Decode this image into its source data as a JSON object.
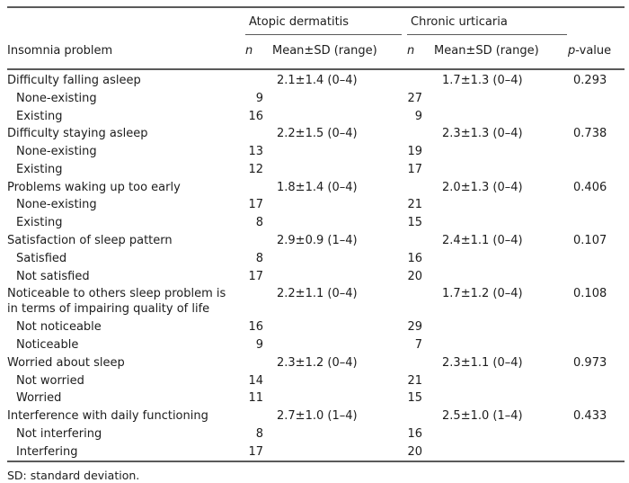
{
  "colors": {
    "rule": "#5a5a5a",
    "text": "#1c1c1c",
    "background": "#ffffff"
  },
  "table": {
    "groups": [
      "Atopic dermatitis",
      "Chronic urticaria"
    ],
    "headers": {
      "stub": "Insomnia problem",
      "n": "n",
      "mean": "Mean±SD (range)",
      "p_symbol": "p",
      "p_suffix": "-value"
    },
    "rows": [
      {
        "label": "Difficulty falling asleep",
        "indent": false,
        "ad_n": "",
        "ad_mean": "2.1±1.4 (0–4)",
        "cu_n": "",
        "cu_mean": "1.7±1.3 (0–4)",
        "p": "0.293"
      },
      {
        "label": "None-existing",
        "indent": true,
        "ad_n": "9",
        "ad_mean": "",
        "cu_n": "27",
        "cu_mean": "",
        "p": ""
      },
      {
        "label": "Existing",
        "indent": true,
        "ad_n": "16",
        "ad_mean": "",
        "cu_n": "9",
        "cu_mean": "",
        "p": ""
      },
      {
        "label": "Difficulty staying asleep",
        "indent": false,
        "ad_n": "",
        "ad_mean": "2.2±1.5 (0–4)",
        "cu_n": "",
        "cu_mean": "2.3±1.3 (0–4)",
        "p": "0.738"
      },
      {
        "label": "None-existing",
        "indent": true,
        "ad_n": "13",
        "ad_mean": "",
        "cu_n": "19",
        "cu_mean": "",
        "p": ""
      },
      {
        "label": "Existing",
        "indent": true,
        "ad_n": "12",
        "ad_mean": "",
        "cu_n": "17",
        "cu_mean": "",
        "p": ""
      },
      {
        "label": "Problems waking up too early",
        "indent": false,
        "ad_n": "",
        "ad_mean": "1.8±1.4 (0–4)",
        "cu_n": "",
        "cu_mean": "2.0±1.3 (0–4)",
        "p": "0.406"
      },
      {
        "label": "None-existing",
        "indent": true,
        "ad_n": "17",
        "ad_mean": "",
        "cu_n": "21",
        "cu_mean": "",
        "p": ""
      },
      {
        "label": "Existing",
        "indent": true,
        "ad_n": "8",
        "ad_mean": "",
        "cu_n": "15",
        "cu_mean": "",
        "p": ""
      },
      {
        "label": "Satisfaction of sleep pattern",
        "indent": false,
        "ad_n": "",
        "ad_mean": "2.9±0.9 (1–4)",
        "cu_n": "",
        "cu_mean": "2.4±1.1 (0–4)",
        "p": "0.107"
      },
      {
        "label": "Satisfied",
        "indent": true,
        "ad_n": "8",
        "ad_mean": "",
        "cu_n": "16",
        "cu_mean": "",
        "p": ""
      },
      {
        "label": "Not satisfied",
        "indent": true,
        "ad_n": "17",
        "ad_mean": "",
        "cu_n": "20",
        "cu_mean": "",
        "p": ""
      },
      {
        "label": "Noticeable to others sleep problem is\nin terms of impairing quality of life",
        "indent": false,
        "ad_n": "",
        "ad_mean": "2.2±1.1 (0–4)",
        "cu_n": "",
        "cu_mean": "1.7±1.2 (0–4)",
        "p": "0.108"
      },
      {
        "label": "Not noticeable",
        "indent": true,
        "ad_n": "16",
        "ad_mean": "",
        "cu_n": "29",
        "cu_mean": "",
        "p": ""
      },
      {
        "label": "Noticeable",
        "indent": true,
        "ad_n": "9",
        "ad_mean": "",
        "cu_n": "7",
        "cu_mean": "",
        "p": ""
      },
      {
        "label": "Worried about sleep",
        "indent": false,
        "ad_n": "",
        "ad_mean": "2.3±1.2 (0–4)",
        "cu_n": "",
        "cu_mean": "2.3±1.1 (0–4)",
        "p": "0.973"
      },
      {
        "label": "Not worried",
        "indent": true,
        "ad_n": "14",
        "ad_mean": "",
        "cu_n": "21",
        "cu_mean": "",
        "p": ""
      },
      {
        "label": "Worried",
        "indent": true,
        "ad_n": "11",
        "ad_mean": "",
        "cu_n": "15",
        "cu_mean": "",
        "p": ""
      },
      {
        "label": "Interference with daily functioning",
        "indent": false,
        "ad_n": "",
        "ad_mean": "2.7±1.0 (1–4)",
        "cu_n": "",
        "cu_mean": "2.5±1.0 (1–4)",
        "p": "0.433"
      },
      {
        "label": "Not interfering",
        "indent": true,
        "ad_n": "8",
        "ad_mean": "",
        "cu_n": "16",
        "cu_mean": "",
        "p": ""
      },
      {
        "label": "Interfering",
        "indent": true,
        "ad_n": "17",
        "ad_mean": "",
        "cu_n": "20",
        "cu_mean": "",
        "p": ""
      }
    ],
    "footnote": "SD: standard deviation."
  }
}
